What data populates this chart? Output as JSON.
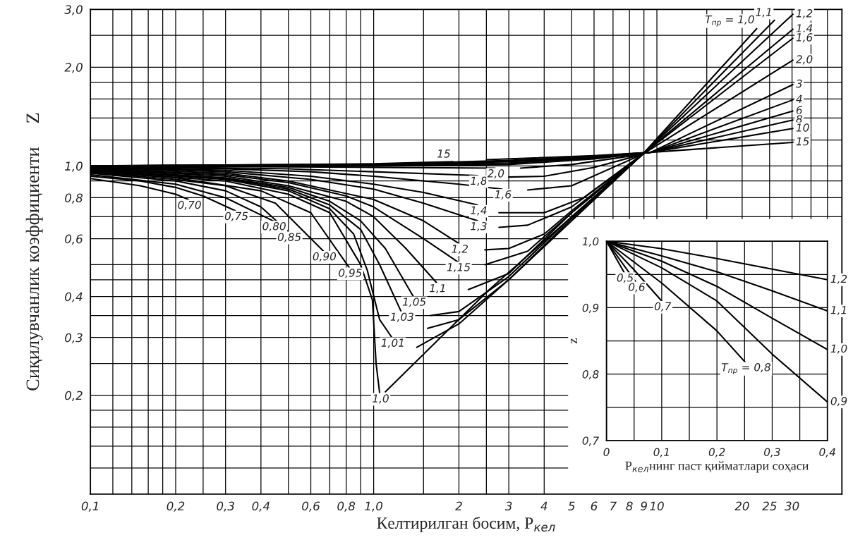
{
  "chart_data": [
    {
      "type": "line",
      "xlabel": "Келтирилган босим, P$_{кел}$",
      "ylabel": "Сиқилувчанлик коэффициенти     Z",
      "log": "xy",
      "grid": true,
      "xlim": [
        0.1,
        45
      ],
      "ylim": [
        0.1,
        3.0
      ],
      "xticks": [
        {
          "value": 0.1,
          "label": "0,1"
        },
        {
          "value": 0.12,
          "label": null
        },
        {
          "value": 0.14,
          "label": null
        },
        {
          "value": 0.16,
          "label": null
        },
        {
          "value": 0.18,
          "label": null
        },
        {
          "value": 0.2,
          "label": "0,2"
        },
        {
          "value": 0.25,
          "label": null
        },
        {
          "value": 0.3,
          "label": "0,3"
        },
        {
          "value": 0.4,
          "label": "0,4"
        },
        {
          "value": 0.5,
          "label": null
        },
        {
          "value": 0.6,
          "label": "0,6"
        },
        {
          "value": 0.7,
          "label": null
        },
        {
          "value": 0.8,
          "label": "0,8"
        },
        {
          "value": 0.9,
          "label": null
        },
        {
          "value": 1.0,
          "label": "1,0"
        },
        {
          "value": 1.5,
          "label": null
        },
        {
          "value": 2,
          "label": "2"
        },
        {
          "value": 2.5,
          "label": null
        },
        {
          "value": 3,
          "label": "3"
        },
        {
          "value": 4,
          "label": "4"
        },
        {
          "value": 5,
          "label": "5"
        },
        {
          "value": 6,
          "label": "6"
        },
        {
          "value": 7,
          "label": "7"
        },
        {
          "value": 8,
          "label": "8"
        },
        {
          "value": 9,
          "label": "9"
        },
        {
          "value": 10,
          "label": "10"
        },
        {
          "value": 15,
          "label": null
        },
        {
          "value": 20,
          "label": "20"
        },
        {
          "value": 25,
          "label": "25"
        },
        {
          "value": 30,
          "label": "30"
        },
        {
          "value": 35,
          "label": null
        },
        {
          "value": 40,
          "label": null
        }
      ],
      "yticks": [
        {
          "value": 0.12,
          "label": null
        },
        {
          "value": 0.14,
          "label": null
        },
        {
          "value": 0.16,
          "label": null
        },
        {
          "value": 0.18,
          "label": null
        },
        {
          "value": 0.2,
          "label": "0,2"
        },
        {
          "value": 0.25,
          "label": null
        },
        {
          "value": 0.3,
          "label": "0,3"
        },
        {
          "value": 0.35,
          "label": null
        },
        {
          "value": 0.4,
          "label": "0,4"
        },
        {
          "value": 0.45,
          "label": null
        },
        {
          "value": 0.5,
          "label": null
        },
        {
          "value": 0.6,
          "label": "0,6"
        },
        {
          "value": 0.7,
          "label": null
        },
        {
          "value": 0.8,
          "label": "0,8"
        },
        {
          "value": 0.9,
          "label": null
        },
        {
          "value": 1.0,
          "label": "1,0"
        },
        {
          "value": 1.2,
          "label": null
        },
        {
          "value": 1.4,
          "label": null
        },
        {
          "value": 1.6,
          "label": null
        },
        {
          "value": 1.8,
          "label": null
        },
        {
          "value": 2.0,
          "label": "2,0"
        },
        {
          "value": 2.5,
          "label": null
        },
        {
          "value": 3.0,
          "label": "3,0"
        }
      ],
      "series": [
        {
          "name": "0,70",
          "color": "#000000",
          "x": [
            0.1,
            0.15,
            0.2,
            0.222
          ],
          "values": [
            0.915,
            0.87,
            0.82,
            0.79
          ]
        },
        {
          "name": "0,75",
          "color": "#000000",
          "x": [
            0.1,
            0.15,
            0.2,
            0.25,
            0.325
          ],
          "values": [
            0.93,
            0.9,
            0.86,
            0.81,
            0.73
          ]
        },
        {
          "name": "0,80",
          "color": "#000000",
          "x": [
            0.1,
            0.2,
            0.3,
            0.442
          ],
          "values": [
            0.94,
            0.88,
            0.8,
            0.68
          ]
        },
        {
          "name": "0,85",
          "color": "#000000",
          "x": [
            0.1,
            0.2,
            0.3,
            0.4,
            0.5
          ],
          "values": [
            0.95,
            0.9,
            0.84,
            0.75,
            0.63
          ]
        },
        {
          "name": "0,90",
          "color": "#000000",
          "x": [
            0.1,
            0.2,
            0.3,
            0.45,
            0.665
          ],
          "values": [
            0.955,
            0.91,
            0.87,
            0.77,
            0.55
          ]
        },
        {
          "name": "0,95",
          "color": "#000000",
          "x": [
            0.1,
            0.2,
            0.4,
            0.6,
            0.82
          ],
          "values": [
            0.96,
            0.92,
            0.84,
            0.72,
            0.49
          ]
        },
        {
          "name": "1,0",
          "color": "#000000",
          "x": [
            0.1,
            0.3,
            0.5,
            0.7,
            0.9,
            0.99,
            1.02,
            1.05
          ],
          "values": [
            0.965,
            0.9,
            0.82,
            0.72,
            0.5,
            0.39,
            0.25,
            0.203
          ]
        },
        {
          "name": "T$_{пр}$ = 1,0",
          "color": "#000000",
          "x": [
            1.1,
            2.56,
            8.9,
            22.5
          ],
          "values": [
            0.205,
            0.42,
            1.085,
            2.62
          ]
        },
        {
          "name": "1,01",
          "color": "#000000",
          "x": [
            0.1,
            0.3,
            0.5,
            0.7,
            0.85,
            0.95,
            1.05,
            1.16
          ],
          "values": [
            0.97,
            0.91,
            0.84,
            0.74,
            0.62,
            0.48,
            0.34,
            0.3
          ]
        },
        {
          "color": "#000000",
          "x": [
            1.42,
            2.0,
            3.0,
            5,
            8.9
          ],
          "values": [
            0.28,
            0.33,
            0.45,
            0.68,
            1.085
          ]
        },
        {
          "name": "1,03",
          "color": "#000000",
          "x": [
            0.1,
            0.3,
            0.5,
            0.7,
            0.9,
            1.05,
            1.25
          ],
          "values": [
            0.97,
            0.915,
            0.85,
            0.76,
            0.64,
            0.5,
            0.36
          ]
        },
        {
          "color": "#000000",
          "x": [
            1.55,
            2.0,
            3,
            5,
            8.9
          ],
          "values": [
            0.32,
            0.34,
            0.45,
            0.69,
            1.085
          ]
        },
        {
          "name": "1,05",
          "color": "#000000",
          "x": [
            0.1,
            0.3,
            0.5,
            0.7,
            0.9,
            1.1,
            1.38
          ],
          "values": [
            0.975,
            0.92,
            0.86,
            0.78,
            0.68,
            0.56,
            0.4
          ]
        },
        {
          "color": "#000000",
          "x": [
            1.59,
            2.0,
            3,
            5,
            8.9
          ],
          "values": [
            0.35,
            0.36,
            0.46,
            0.7,
            1.085
          ]
        },
        {
          "name": "1,1",
          "color": "#000000",
          "x": [
            0.1,
            0.3,
            0.5,
            0.8,
            1.0,
            1.3,
            1.67
          ],
          "values": [
            0.98,
            0.93,
            0.87,
            0.78,
            0.7,
            0.56,
            0.44
          ]
        },
        {
          "name": "1,1",
          "color": "#000000",
          "x": [
            2.16,
            3,
            5,
            8.9,
            26
          ],
          "values": [
            0.42,
            0.47,
            0.72,
            1.085,
            2.78
          ]
        },
        {
          "name": "1,15",
          "color": "#000000",
          "x": [
            0.1,
            0.3,
            0.5,
            0.8,
            1.0,
            1.5,
            1.98
          ],
          "values": [
            0.98,
            0.94,
            0.89,
            0.81,
            0.75,
            0.6,
            0.51
          ]
        },
        {
          "color": "#000000",
          "x": [
            2.47,
            3.5,
            5,
            8.9
          ],
          "values": [
            0.5,
            0.55,
            0.72,
            1.085
          ]
        },
        {
          "name": "1,2",
          "color": "#000000",
          "x": [
            0.1,
            0.3,
            0.5,
            1.0,
            1.5,
            2.0
          ],
          "values": [
            0.985,
            0.95,
            0.9,
            0.79,
            0.68,
            0.58
          ]
        },
        {
          "name": "1,2",
          "color": "#000000",
          "x": [
            2.47,
            3,
            4,
            5,
            8.9,
            30.2
          ],
          "values": [
            0.555,
            0.56,
            0.62,
            0.73,
            1.085,
            2.9
          ]
        },
        {
          "name": "1,3",
          "color": "#000000",
          "x": [
            0.1,
            0.3,
            0.6,
            1.0,
            1.5,
            2.33
          ],
          "values": [
            0.99,
            0.96,
            0.91,
            0.85,
            0.77,
            0.68
          ]
        },
        {
          "color": "#000000",
          "x": [
            2.77,
            3.5,
            5,
            8.9
          ],
          "values": [
            0.65,
            0.66,
            0.75,
            1.085
          ]
        },
        {
          "name": "1,4",
          "color": "#000000",
          "x": [
            0.1,
            0.3,
            0.6,
            1.0,
            1.5,
            2.33
          ],
          "values": [
            0.99,
            0.97,
            0.93,
            0.88,
            0.83,
            0.76
          ]
        },
        {
          "name": "1,4",
          "color": "#000000",
          "x": [
            2.77,
            4,
            5.5,
            8.9,
            30.2
          ],
          "values": [
            0.72,
            0.72,
            0.8,
            1.085,
            2.61
          ]
        },
        {
          "name": "1,6",
          "color": "#000000",
          "x": [
            0.1,
            0.3,
            0.6,
            1.0,
            2.0,
            2.84
          ],
          "values": [
            0.995,
            0.98,
            0.96,
            0.93,
            0.88,
            0.85
          ]
        },
        {
          "name": "1,6",
          "color": "#000000",
          "x": [
            3.5,
            5,
            8.9,
            30.2
          ],
          "values": [
            0.845,
            0.87,
            1.085,
            2.45
          ]
        },
        {
          "name": "1,8",
          "color": "#000000",
          "x": [
            0.1,
            0.5,
            1.0,
            2.33
          ],
          "values": [
            1.0,
            0.98,
            0.96,
            0.935
          ]
        },
        {
          "color": "#000000",
          "x": [
            3.0,
            4,
            6,
            8.9
          ],
          "values": [
            0.925,
            0.93,
            0.99,
            1.085
          ]
        },
        {
          "name": "2,0",
          "color": "#000000",
          "x": [
            0.1,
            1,
            2.68
          ],
          "values": [
            1.0,
            0.99,
            0.985
          ]
        },
        {
          "name": "2,0",
          "color": "#000000",
          "x": [
            3.3,
            5,
            8.9,
            30.2
          ],
          "values": [
            0.985,
            1.01,
            1.085,
            2.1
          ]
        },
        {
          "name": "3",
          "color": "#000000",
          "x": [
            0.1,
            1,
            3,
            6,
            9.5,
            30.2
          ],
          "values": [
            1.0,
            1.0,
            1.01,
            1.05,
            1.1,
            1.77
          ]
        },
        {
          "name": "4",
          "color": "#000000",
          "x": [
            0.1,
            1,
            3,
            6,
            9.5,
            30.2
          ],
          "values": [
            1.0,
            1.005,
            1.02,
            1.055,
            1.1,
            1.59
          ]
        },
        {
          "name": "6",
          "color": "#000000",
          "x": [
            0.1,
            1,
            3,
            6,
            9.5,
            30.2
          ],
          "values": [
            1.0,
            1.01,
            1.03,
            1.06,
            1.1,
            1.47
          ]
        },
        {
          "name": "8",
          "color": "#000000",
          "x": [
            0.1,
            1,
            3,
            6,
            9.5,
            30.2
          ],
          "values": [
            1.0,
            1.01,
            1.035,
            1.065,
            1.1,
            1.38
          ]
        },
        {
          "name": "10",
          "color": "#000000",
          "x": [
            0.1,
            1,
            3,
            6,
            9.5,
            30.2
          ],
          "values": [
            1.0,
            1.012,
            1.04,
            1.07,
            1.1,
            1.3
          ]
        },
        {
          "name": "15",
          "color": "#000000",
          "x": [
            0.1,
            1,
            1.9
          ],
          "values": [
            1.0,
            1.015,
            1.03
          ]
        },
        {
          "name": "15",
          "color": "#000000",
          "x": [
            2.5,
            6,
            9.5,
            30.2
          ],
          "values": [
            1.045,
            1.075,
            1.1,
            1.18
          ]
        }
      ]
    },
    {
      "type": "line",
      "xlabel": "P$_{кел}$нинг паст қийматлари соҳаси",
      "ylabel": "z",
      "grid": true,
      "xlim": [
        0,
        0.4
      ],
      "ylim": [
        0.7,
        1.0
      ],
      "xticks": [
        {
          "value": 0,
          "label": "0"
        },
        {
          "value": 0.05,
          "label": null
        },
        {
          "value": 0.1,
          "label": "0,1"
        },
        {
          "value": 0.15,
          "label": null
        },
        {
          "value": 0.2,
          "label": "0,2"
        },
        {
          "value": 0.25,
          "label": null
        },
        {
          "value": 0.3,
          "label": "0,3"
        },
        {
          "value": 0.35,
          "label": null
        },
        {
          "value": 0.4,
          "label": "0,4"
        }
      ],
      "yticks": [
        {
          "value": 0.7,
          "label": "0,7"
        },
        {
          "value": 0.75,
          "label": null
        },
        {
          "value": 0.8,
          "label": "0,8"
        },
        {
          "value": 0.85,
          "label": null
        },
        {
          "value": 0.9,
          "label": "0,9"
        },
        {
          "value": 0.95,
          "label": null
        },
        {
          "value": 1.0,
          "label": "1,0"
        }
      ],
      "series": [
        {
          "name": "0,5",
          "color": "#000000",
          "x": [
            0,
            0.032
          ],
          "values": [
            1.0,
            0.953
          ]
        },
        {
          "name": "0,6",
          "color": "#000000",
          "x": [
            0,
            0.053
          ],
          "values": [
            1.0,
            0.939
          ]
        },
        {
          "name": "0,7",
          "color": "#000000",
          "x": [
            0,
            0.05,
            0.1
          ],
          "values": [
            1.0,
            0.957,
            0.91
          ]
        },
        {
          "name": "T$_{пр}$ = 0,8",
          "color": "#000000",
          "x": [
            0,
            0.1,
            0.2,
            0.251
          ],
          "values": [
            1.0,
            0.937,
            0.865,
            0.818
          ]
        },
        {
          "name": "0,9",
          "color": "#000000",
          "x": [
            0,
            0.1,
            0.2,
            0.3,
            0.4
          ],
          "values": [
            1.0,
            0.96,
            0.91,
            0.83,
            0.758
          ]
        },
        {
          "name": "1,0",
          "color": "#000000",
          "x": [
            0,
            0.1,
            0.2,
            0.3,
            0.4
          ],
          "values": [
            1.0,
            0.97,
            0.932,
            0.884,
            0.837
          ]
        },
        {
          "name": "1,1",
          "color": "#000000",
          "x": [
            0,
            0.1,
            0.2,
            0.298,
            0.4
          ],
          "values": [
            1.0,
            0.978,
            0.954,
            0.926,
            0.895
          ]
        },
        {
          "name": "1,2",
          "color": "#000000",
          "x": [
            0,
            0.098,
            0.2,
            0.4
          ],
          "values": [
            1.0,
            0.989,
            0.974,
            0.942
          ]
        }
      ]
    }
  ]
}
